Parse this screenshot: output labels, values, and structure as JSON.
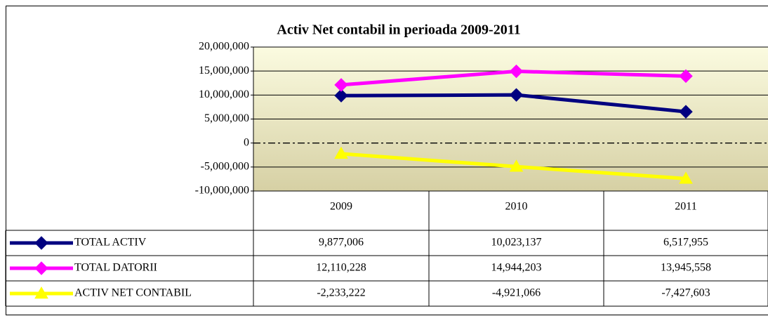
{
  "chart_data": {
    "type": "line",
    "title": "Activ Net contabil in perioada 2009-2011",
    "categories": [
      "2009",
      "2010",
      "2011"
    ],
    "series": [
      {
        "name": "TOTAL ACTIV",
        "color": "#000080",
        "marker": "diamond",
        "values": [
          9877006,
          10023137,
          6517955
        ],
        "value_labels": [
          "9,877,006",
          "10,023,137",
          "6,517,955"
        ]
      },
      {
        "name": "TOTAL DATORII",
        "color": "#ff00ff",
        "marker": "diamond",
        "values": [
          12110228,
          14944203,
          13945558
        ],
        "value_labels": [
          "12,110,228",
          "14,944,203",
          "13,945,558"
        ]
      },
      {
        "name": "ACTIV NET CONTABIL",
        "color": "#ffff00",
        "marker": "triangle",
        "values": [
          -2233222,
          -4921066,
          -7427603
        ],
        "value_labels": [
          "-2,233,222",
          "-4,921,066",
          "-7,427,603"
        ]
      }
    ],
    "ylim": [
      -10000000,
      20000000
    ],
    "yticks": [
      {
        "value": -10000000,
        "label": "-10,000,000"
      },
      {
        "value": -5000000,
        "label": "-5,000,000"
      },
      0,
      {
        "value": 5000000,
        "label": "5,000,000"
      },
      {
        "value": 10000000,
        "label": "10,000,000"
      },
      {
        "value": 15000000,
        "label": "15,000,000"
      },
      {
        "value": 20000000,
        "label": "20,000,000"
      }
    ],
    "grid": true,
    "legend": "table"
  }
}
